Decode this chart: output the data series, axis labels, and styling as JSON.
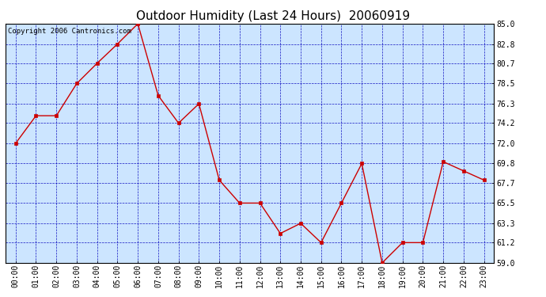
{
  "title": "Outdoor Humidity (Last 24 Hours)  20060919",
  "copyright_text": "Copyright 2006 Cantronics.com",
  "x_labels": [
    "00:00",
    "01:00",
    "02:00",
    "03:00",
    "04:00",
    "05:00",
    "06:00",
    "07:00",
    "08:00",
    "09:00",
    "10:00",
    "11:00",
    "12:00",
    "13:00",
    "14:00",
    "15:00",
    "16:00",
    "17:00",
    "18:00",
    "19:00",
    "20:00",
    "21:00",
    "22:00",
    "23:00"
  ],
  "y_values": [
    72.0,
    75.0,
    75.0,
    78.5,
    80.7,
    82.8,
    85.0,
    77.2,
    74.2,
    76.3,
    68.0,
    65.5,
    65.5,
    62.2,
    63.3,
    61.2,
    65.5,
    69.8,
    59.0,
    61.2,
    61.2,
    70.0,
    69.0,
    68.0
  ],
  "ylim_min": 59.0,
  "ylim_max": 85.0,
  "yticks": [
    59.0,
    61.2,
    63.3,
    65.5,
    67.7,
    69.8,
    72.0,
    74.2,
    76.3,
    78.5,
    80.7,
    82.8,
    85.0
  ],
  "line_color": "#cc0000",
  "marker_color": "#cc0000",
  "grid_color": "#0000bb",
  "plot_bg_color": "#cce5ff",
  "outer_bg_color": "#ffffff",
  "title_fontsize": 11,
  "axis_label_fontsize": 7,
  "copyright_fontsize": 6.5
}
